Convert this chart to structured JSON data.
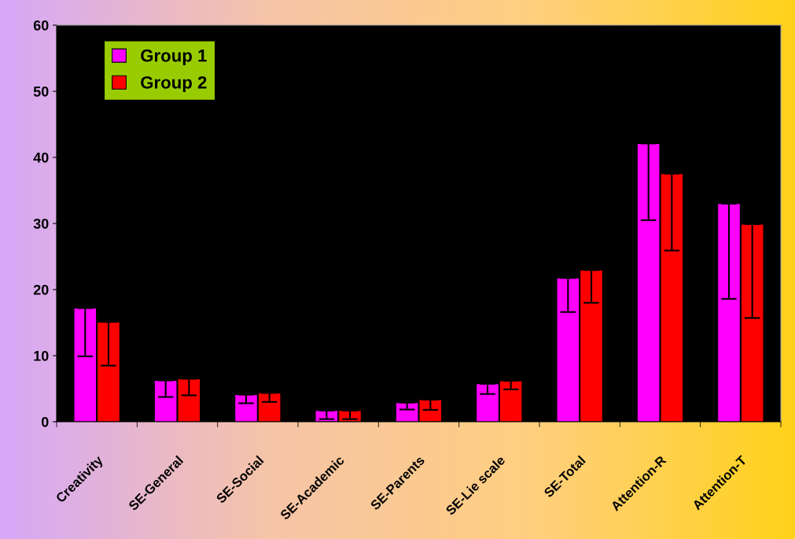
{
  "chart_data": {
    "type": "bar",
    "categories": [
      "Creativity",
      "SE-General",
      "SE-Social",
      "SE-Academic",
      "SE-Parents",
      "SE-Lie scale",
      "SE-Total",
      "Attention-R",
      "Attention-T"
    ],
    "series": [
      {
        "name": "Group 1",
        "color": "#ff00ff",
        "values": [
          17.2,
          6.25,
          4.1,
          1.7,
          2.9,
          5.75,
          21.75,
          42.1,
          33.0
        ],
        "errors": [
          [
            9.9,
            17.2
          ],
          [
            3.75,
            6.25
          ],
          [
            2.8,
            4.1
          ],
          [
            0.4,
            1.7
          ],
          [
            1.85,
            2.9
          ],
          [
            4.2,
            5.75
          ],
          [
            16.6,
            21.75
          ],
          [
            30.5,
            42.1
          ],
          [
            18.6,
            33.0
          ]
        ]
      },
      {
        "name": "Group 2",
        "color": "#ff0000",
        "values": [
          15.1,
          6.5,
          4.35,
          1.7,
          3.35,
          6.2,
          22.95,
          37.55,
          29.9
        ],
        "errors": [
          [
            8.5,
            15.1
          ],
          [
            4.0,
            6.5
          ],
          [
            3.0,
            4.35
          ],
          [
            0.4,
            1.7
          ],
          [
            1.8,
            3.35
          ],
          [
            4.9,
            6.2
          ],
          [
            18.0,
            22.95
          ],
          [
            25.9,
            37.55
          ],
          [
            15.7,
            29.9
          ]
        ]
      }
    ],
    "ylim": [
      0,
      60
    ],
    "yticks": [
      0,
      10,
      20,
      30,
      40,
      50,
      60
    ],
    "grid": false,
    "legend": "top left"
  }
}
